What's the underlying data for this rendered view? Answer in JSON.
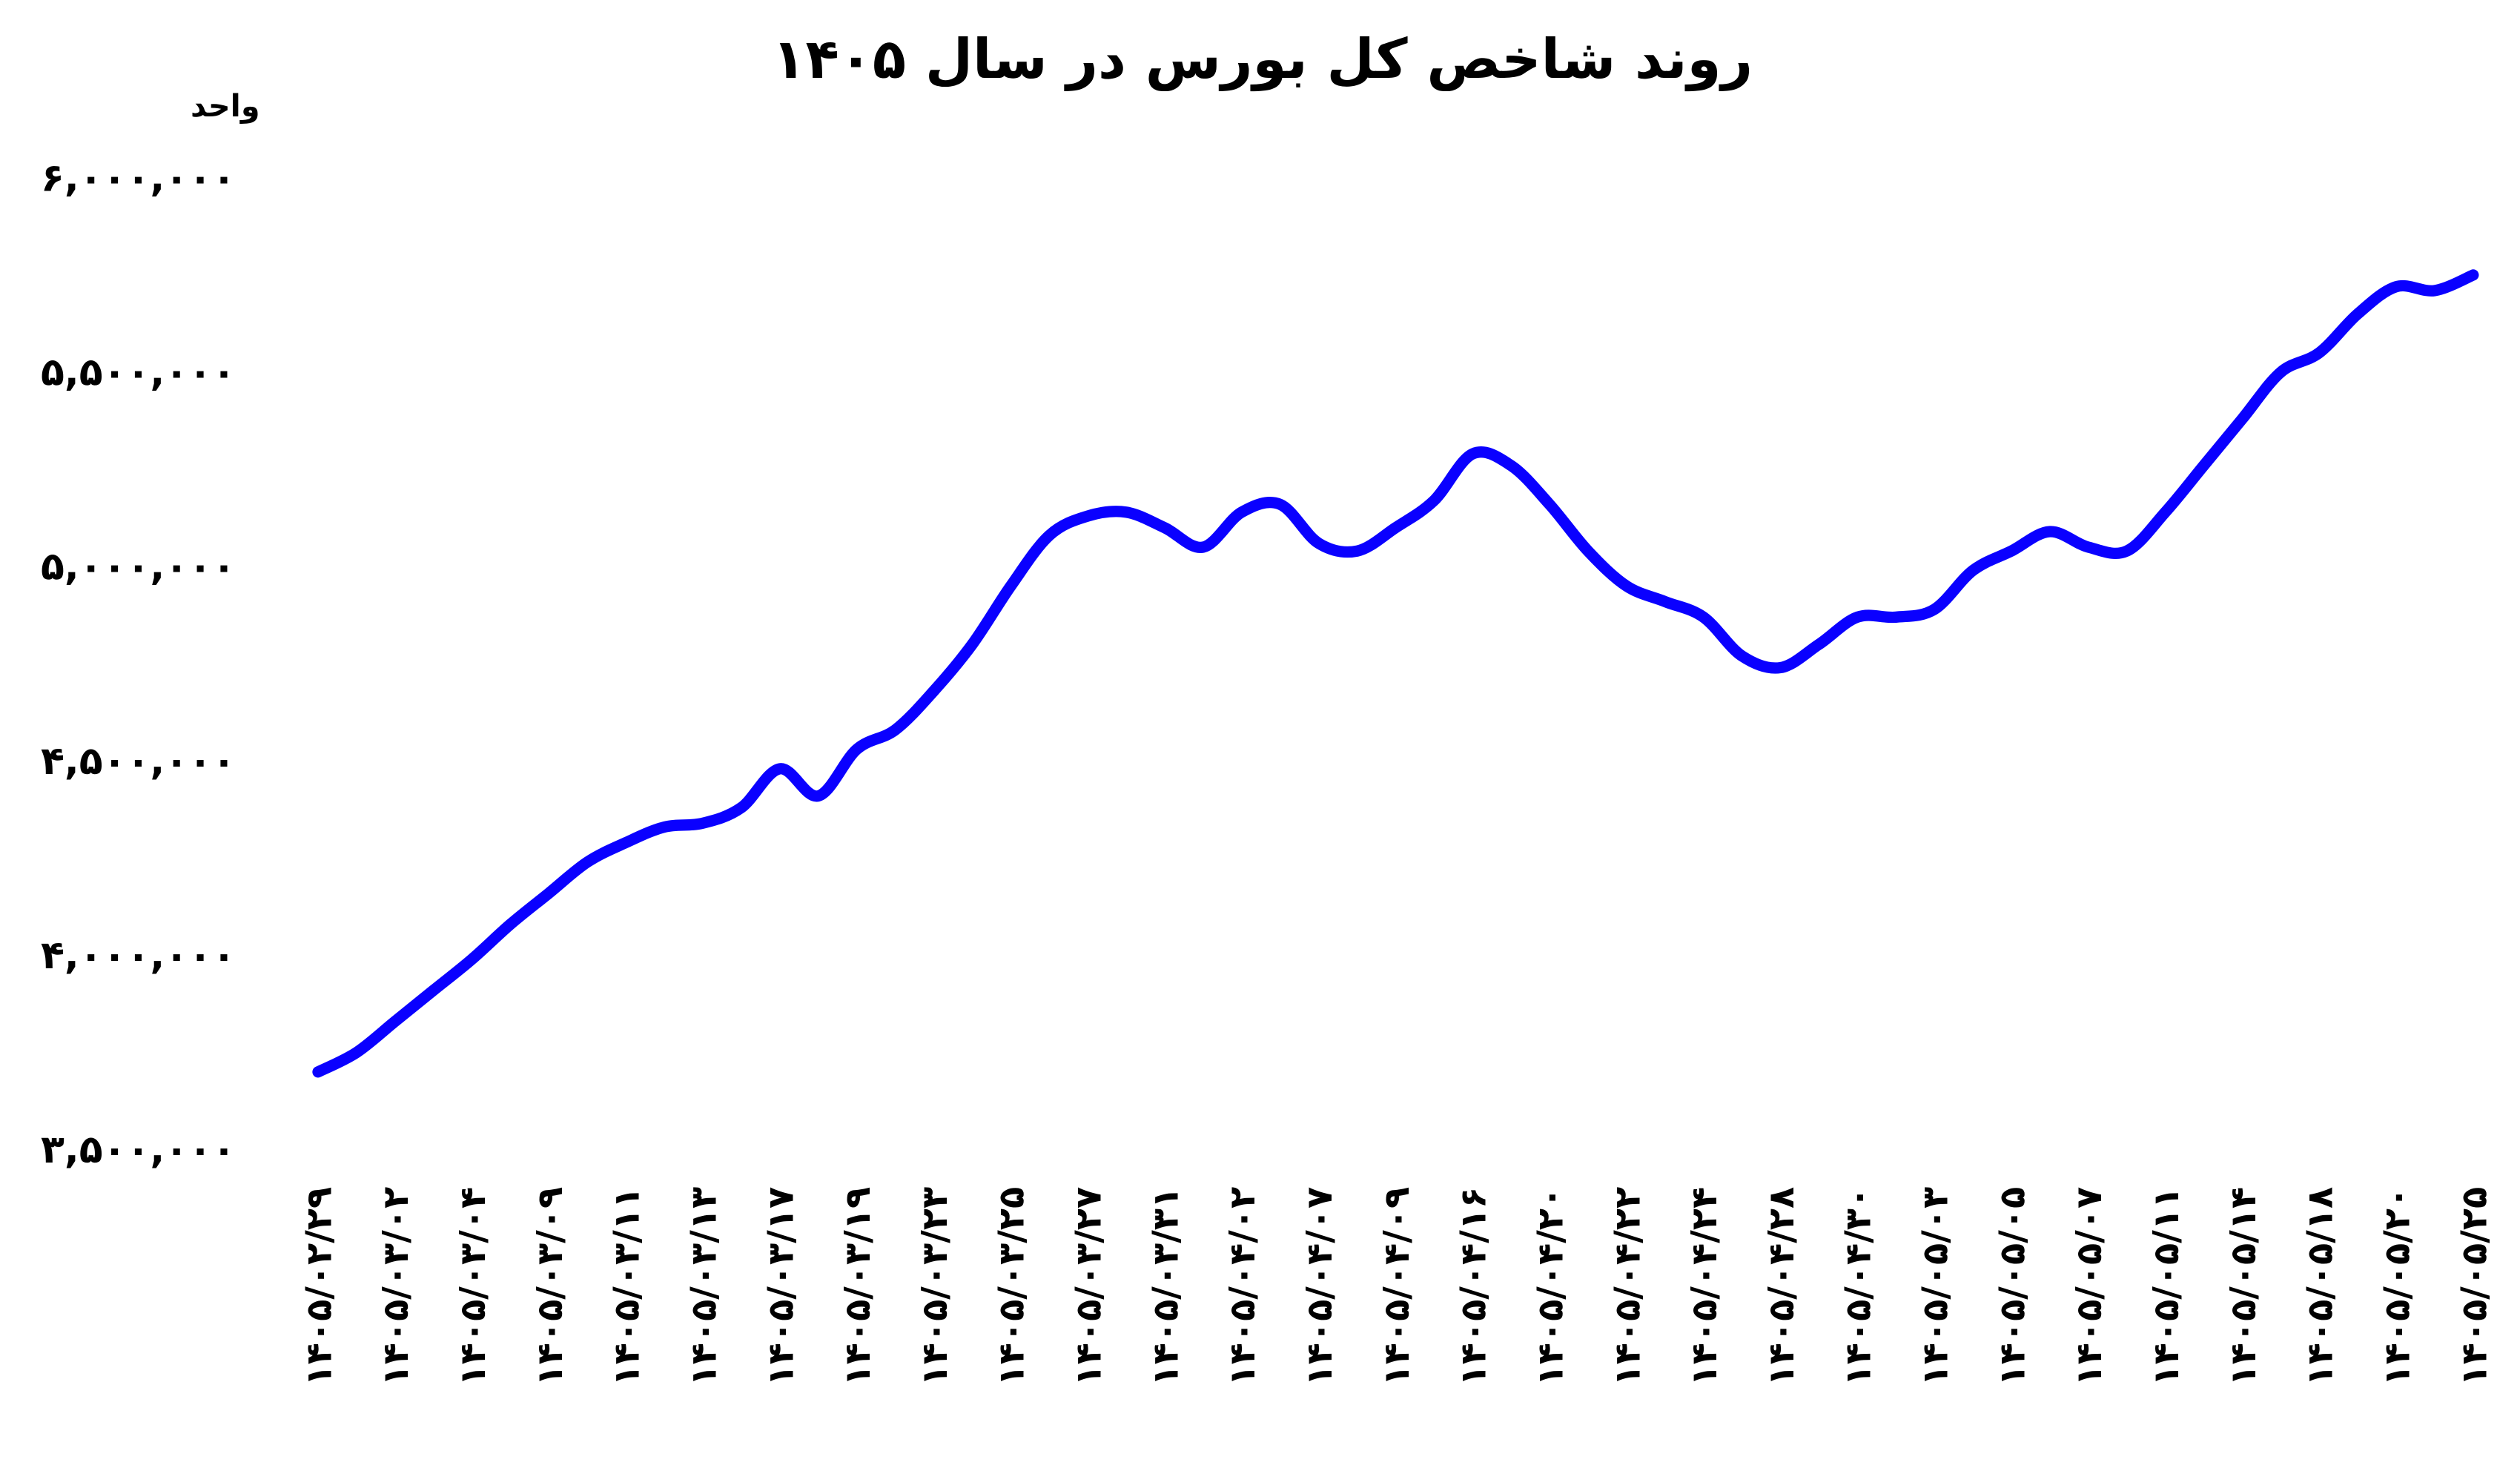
{
  "chart_data": {
    "type": "line",
    "title": "روند شاخص کل بورس در سال ۱۴۰۵",
    "y_label": "واحد",
    "categories": [
      "۱۴۰۵/۰۲/۲۹",
      null,
      "۱۴۰۵/۰۳/۰۲",
      null,
      "۱۴۰۵/۰۳/۰۴",
      null,
      "۱۴۰۵/۰۳/۰۹",
      null,
      "۱۴۰۵/۰۳/۱۱",
      null,
      "۱۴۰۵/۰۳/۱۳",
      null,
      "۱۴۰۵/۰۳/۱۷",
      null,
      "۱۴۰۵/۰۳/۱۹",
      null,
      "۱۴۰۵/۰۳/۲۳",
      null,
      "۱۴۰۵/۰۳/۲۵",
      null,
      "۱۴۰۵/۰۳/۲۷",
      null,
      "۱۴۰۵/۰۳/۳۱",
      null,
      "۱۴۰۵/۰۴/۰۲",
      null,
      "۱۴۰۵/۰۴/۰۷",
      null,
      "۱۴۰۵/۰۴/۰۹",
      null,
      "۱۴۰۵/۰۴/۱۶",
      null,
      "۱۴۰۵/۰۴/۲۰",
      null,
      "۱۴۰۵/۰۴/۲۲",
      null,
      "۱۴۰۵/۰۴/۲۴",
      null,
      "۱۴۰۵/۰۴/۲۸",
      null,
      "۱۴۰۵/۰۴/۳۰",
      null,
      "۱۴۰۵/۰۵/۰۳",
      null,
      "۱۴۰۵/۰۵/۰۵",
      null,
      "۱۴۰۵/۰۵/۰۷",
      null,
      "۱۴۰۵/۰۵/۱۱",
      null,
      "۱۴۰۵/۰۵/۱۴",
      null,
      "۱۴۰۵/۰۵/۱۸",
      null,
      "۱۴۰۵/۰۵/۲۰",
      null,
      "۱۴۰۵/۰۵/۲۵"
    ],
    "values": [
      3700000,
      3750000,
      3830000,
      3910000,
      3990000,
      4080000,
      4160000,
      4240000,
      4290000,
      4330000,
      4340000,
      4380000,
      4480000,
      4410000,
      4530000,
      4580000,
      4680000,
      4800000,
      4950000,
      5080000,
      5130000,
      5140000,
      5100000,
      5050000,
      5140000,
      5160000,
      5060000,
      5040000,
      5100000,
      5170000,
      5290000,
      5260000,
      5160000,
      5040000,
      4950000,
      4910000,
      4870000,
      4770000,
      4740000,
      4800000,
      4870000,
      4870000,
      4890000,
      4990000,
      5040000,
      5090000,
      5050000,
      5040000,
      5140000,
      5260000,
      5380000,
      5500000,
      5550000,
      5650000,
      5720000,
      5710000,
      5750000
    ],
    "color": "#0a00ff",
    "ylim": [
      3500000,
      6000000
    ],
    "yticks": [
      {
        "value": 3500000,
        "label": "۳,۵۰۰,۰۰۰"
      },
      {
        "value": 4000000,
        "label": "۴,۰۰۰,۰۰۰"
      },
      {
        "value": 4500000,
        "label": "۴,۵۰۰,۰۰۰"
      },
      {
        "value": 5000000,
        "label": "۵,۰۰۰,۰۰۰"
      },
      {
        "value": 5500000,
        "label": "۵,۵۰۰,۰۰۰"
      },
      {
        "value": 6000000,
        "label": "۶,۰۰۰,۰۰۰"
      }
    ],
    "grid": false
  }
}
